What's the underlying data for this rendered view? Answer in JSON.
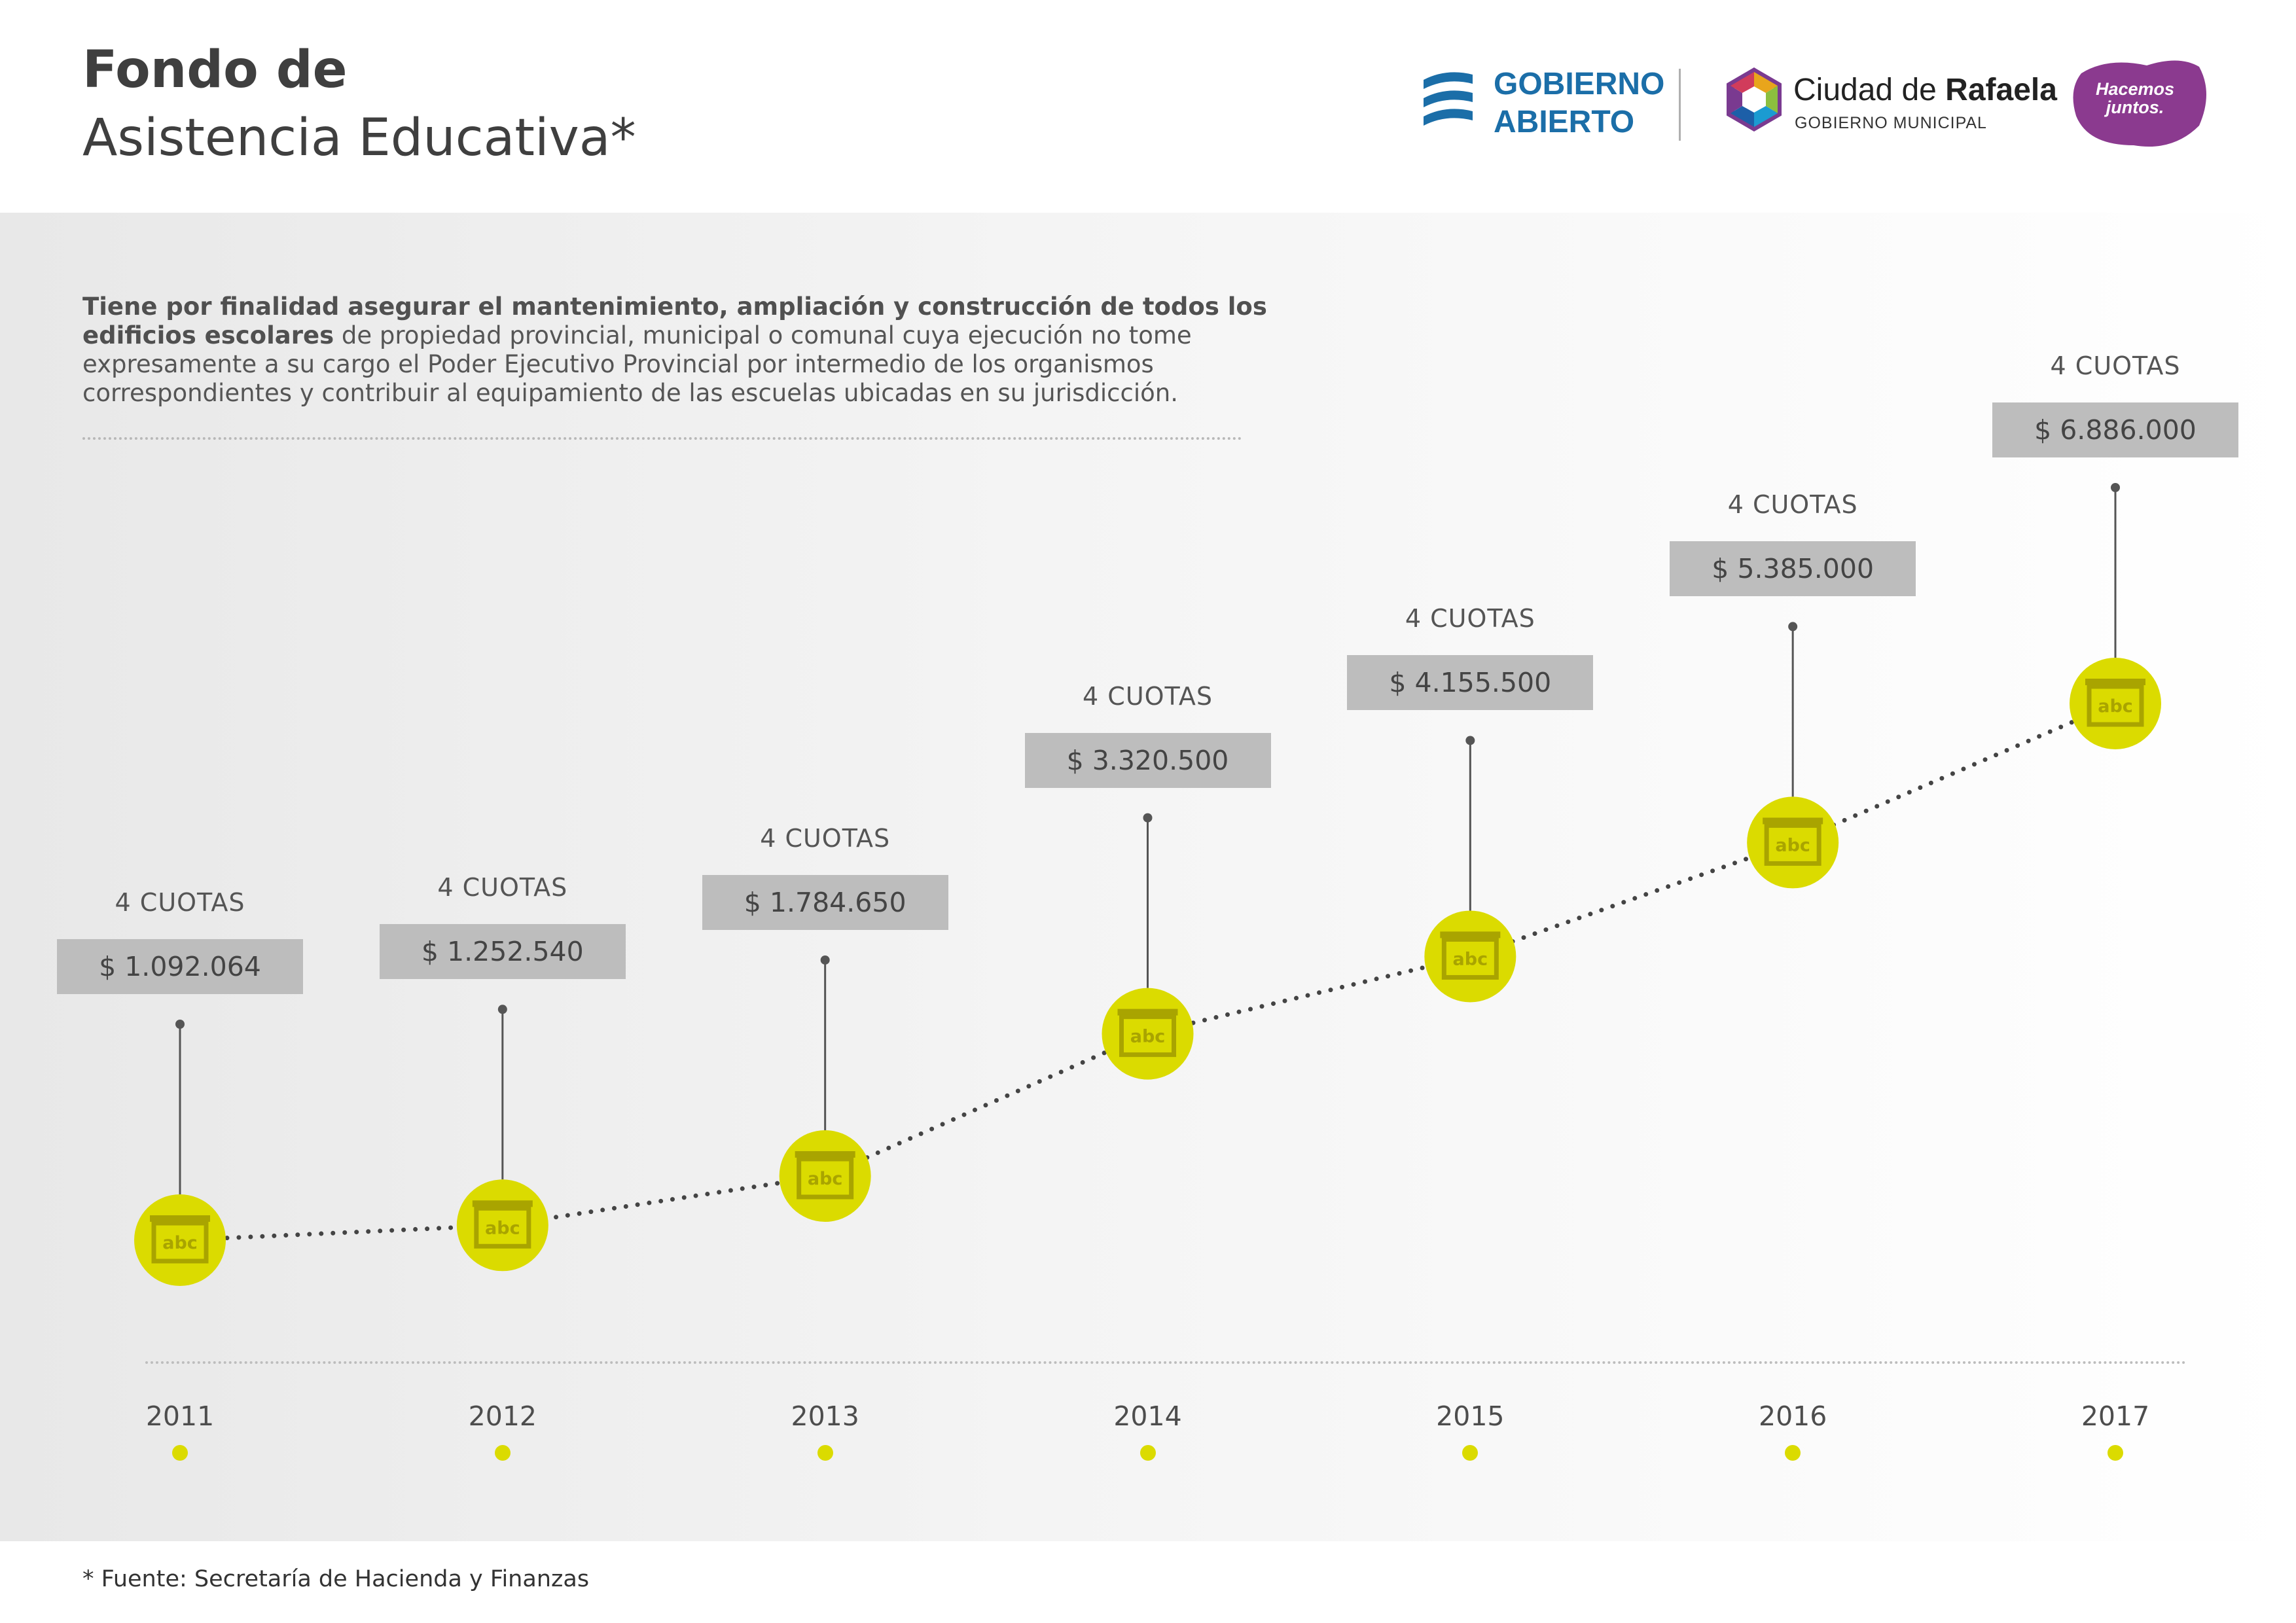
{
  "header": {
    "title_line1": "Fondo de",
    "title_line2": "Asistencia Educativa*"
  },
  "logos": {
    "gobierno_abierto_line1": "GOBIERNO",
    "gobierno_abierto_line2": "ABIERTO",
    "ciudad_prefix": "Ciudad de ",
    "ciudad_name": "Rafaela",
    "ciudad_sub": "GOBIERNO MUNICIPAL",
    "hacemos_line1": "Hacemos",
    "hacemos_line2": "juntos."
  },
  "description": {
    "bold_text": "Tiene por finalidad asegurar el mantenimiento, ampliación y construcción de todos los edificios escolares",
    "normal_text": " de propiedad provincial, municipal o comunal cuya ejecución no tome expresamente a su cargo el Poder Ejecutivo Provincial por intermedio de los organismos correspondientes y contribuir al equipamiento de las escuelas ubicadas en su jurisdicción."
  },
  "marker_icon_text": "abc",
  "colors": {
    "marker": "#dbdb00",
    "icon": "#a9a400",
    "amount_box": "#bdbdbd",
    "trend_line": "#444444",
    "gobierno_abierto": "#1b6ea8",
    "hacemos_juntos": "#8b3a8f"
  },
  "chart_data": {
    "type": "line",
    "x": [
      "2011",
      "2012",
      "2013",
      "2014",
      "2015",
      "2016",
      "2017"
    ],
    "series": [
      {
        "values": [
          1092064,
          1252540,
          1784650,
          3320500,
          4155500,
          5385000,
          6886000
        ],
        "labels": [
          "$ 1.092.064",
          "$ 1.252.540",
          "$ 1.784.650",
          "$ 3.320.500",
          "$ 4.155.500",
          "$ 5.385.000",
          "$ 6.886.000"
        ],
        "cuotas": [
          "4 CUOTAS",
          "4 CUOTAS",
          "4 CUOTAS",
          "4 CUOTAS",
          "4 CUOTAS",
          "4 CUOTAS",
          "4 CUOTAS"
        ]
      }
    ],
    "xlabel": "",
    "ylabel": "",
    "grid": false
  },
  "footnote": "* Fuente: Secretaría de Hacienda y Finanzas"
}
